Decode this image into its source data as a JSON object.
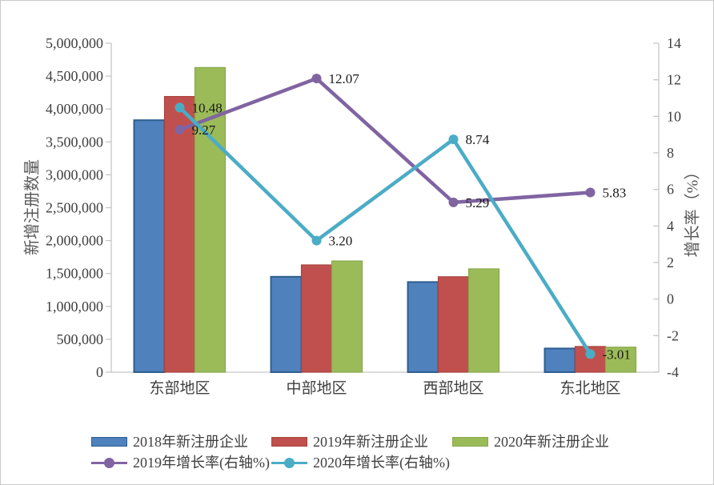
{
  "chart_data": {
    "type": "bar",
    "subtype": "combo-bar-line-dual-axis",
    "title": "",
    "categories": [
      "东部地区",
      "中部地区",
      "西部地区",
      "东北地区"
    ],
    "bar_series": [
      {
        "name": "2018年新注册企业",
        "color": "#4f81bd",
        "border": "#2e5e8e",
        "values": [
          3830000,
          1450000,
          1370000,
          360000
        ]
      },
      {
        "name": "2019年新注册企业",
        "color": "#c0504d",
        "border": "#a8433f",
        "values": [
          4190000,
          1630000,
          1450000,
          390000
        ]
      },
      {
        "name": "2020年新注册企业",
        "color": "#9bbb59",
        "border": "#89a84b",
        "values": [
          4630000,
          1690000,
          1570000,
          380000
        ]
      }
    ],
    "line_series": [
      {
        "name": "2019年增长率(右轴%)",
        "color": "#8064a2",
        "values": [
          9.27,
          12.07,
          5.29,
          5.83
        ],
        "labels": [
          "9.27",
          "12.07",
          "5.29",
          "5.83"
        ]
      },
      {
        "name": "2020年增长率(右轴%)",
        "color": "#4bacc6",
        "values": [
          10.48,
          3.2,
          8.74,
          -3.01
        ],
        "labels": [
          "10.48",
          "3.20",
          "8.74",
          "-3.01"
        ]
      }
    ],
    "left_axis": {
      "title": "新增注册数量",
      "min": 0,
      "max": 5000000,
      "step": 500000,
      "tick_labels": [
        "0",
        "500,000",
        "1,000,000",
        "1,500,000",
        "2,000,000",
        "2,500,000",
        "3,000,000",
        "3,500,000",
        "4,000,000",
        "4,500,000",
        "5,000,000"
      ]
    },
    "right_axis": {
      "title": "增长率（%）",
      "min": -4,
      "max": 14,
      "step": 2,
      "tick_labels": [
        "-4",
        "-2",
        "0",
        "2",
        "4",
        "6",
        "8",
        "10",
        "12",
        "14"
      ]
    },
    "grid": false,
    "legend_position": "bottom",
    "colors": {
      "axis_line": "#c6c6c6",
      "tick_text": "#3f3f3f",
      "data_label_text": "#1a1a1a",
      "axis_title_text": "#595959",
      "background": "#ffffff"
    }
  }
}
